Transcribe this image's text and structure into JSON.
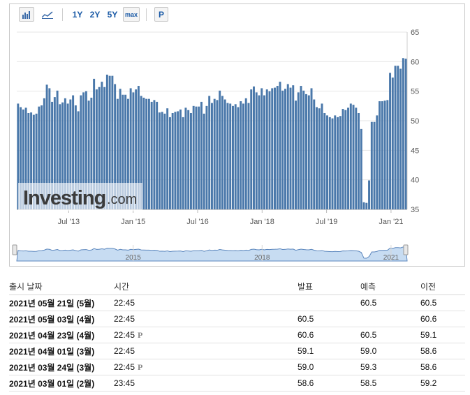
{
  "toolbar": {
    "bar_icon": "bar-chart-icon",
    "line_icon": "line-chart-icon",
    "range_1y": "1Y",
    "range_2y": "2Y",
    "range_5y": "5Y",
    "range_max": "max",
    "p_button": "P"
  },
  "watermark": {
    "brand": "Investing",
    "suffix": ".com"
  },
  "chart_data": {
    "type": "bar",
    "title": "",
    "xlabel": "",
    "ylabel": "",
    "ylim": [
      35,
      65
    ],
    "yticks": [
      35,
      40,
      45,
      50,
      55,
      60,
      65
    ],
    "x_tick_labels": [
      "Jul '13",
      "Jan '15",
      "Jul '16",
      "Jan '18",
      "Jul '19",
      "Jan '21"
    ],
    "x_tick_dates": [
      "2013-07",
      "2015-01",
      "2016-07",
      "2018-01",
      "2019-07",
      "2021-01"
    ],
    "x_range": [
      "2012-05",
      "2021-05"
    ],
    "grid": "horizontal",
    "color": "#4a78aa",
    "values": [
      52.9,
      52.3,
      51.9,
      52.2,
      51.3,
      51.4,
      51.0,
      51.2,
      52.4,
      52.6,
      53.8,
      56.1,
      55.5,
      53.2,
      54.0,
      55.1,
      52.8,
      53.1,
      53.8,
      52.9,
      53.6,
      54.3,
      52.6,
      51.6,
      54.3,
      54.8,
      55.0,
      53.4,
      53.9,
      57.1,
      55.3,
      55.7,
      56.6,
      55.7,
      57.8,
      57.6,
      57.6,
      56.2,
      53.7,
      55.4,
      54.4,
      54.4,
      53.7,
      55.5,
      54.8,
      55.3,
      55.9,
      54.2,
      53.9,
      53.7,
      53.7,
      53.2,
      53.5,
      53.2,
      51.4,
      51.5,
      51.2,
      52.1,
      50.6,
      51.3,
      51.5,
      51.6,
      51.9,
      50.6,
      52.2,
      51.8,
      51.3,
      52.5,
      52.4,
      52.4,
      53.2,
      51.2,
      52.5,
      54.2,
      53.0,
      53.7,
      53.5,
      55.1,
      54.2,
      53.6,
      53.0,
      52.9,
      52.5,
      52.8,
      52.3,
      53.3,
      52.9,
      53.8,
      53.0,
      55.3,
      55.8,
      54.8,
      54.3,
      55.5,
      54.3,
      55.3,
      55.0,
      55.5,
      55.6,
      55.9,
      56.6,
      55.1,
      55.4,
      56.2,
      55.6,
      56.0,
      53.4,
      54.8,
      55.9,
      55.1,
      54.5,
      54.3,
      55.5,
      53.6,
      52.3,
      52.1,
      52.9,
      51.3,
      50.9,
      50.6,
      50.4,
      50.9,
      50.6,
      50.8,
      52.0,
      51.8,
      52.2,
      52.9,
      52.7,
      52.2,
      51.3,
      48.6,
      36.2,
      36.1,
      39.9,
      49.8,
      49.8,
      50.9,
      53.3,
      53.3,
      53.4,
      53.5,
      58.1,
      57.3,
      59.3,
      59.3,
      58.8,
      60.6,
      60.5
    ],
    "navigator": {
      "x_tick_labels": [
        "2015",
        "2018",
        "2021"
      ],
      "x_tick_dates": [
        "2015-01",
        "2018-01",
        "2021-01"
      ]
    }
  },
  "table": {
    "headers": {
      "date": "출시 날짜",
      "time": "시간",
      "actual": "발표",
      "forecast": "예측",
      "previous": "이전"
    },
    "rows": [
      {
        "date": "2021년 05월 21일 (5월)",
        "time": "22:45",
        "prelim": "",
        "actual": "",
        "actual_color": "",
        "forecast": "60.5",
        "previous": "60.5",
        "previous_color": "red"
      },
      {
        "date": "2021년 05월 03일 (4월)",
        "time": "22:45",
        "prelim": "",
        "actual": "60.5",
        "actual_color": "",
        "forecast": "",
        "previous": "60.6",
        "previous_color": ""
      },
      {
        "date": "2021년 04월 23일 (4월)",
        "time": "22:45",
        "prelim": "P",
        "actual": "60.6",
        "actual_color": "red",
        "forecast": "60.5",
        "previous": "59.1",
        "previous_color": ""
      },
      {
        "date": "2021년 04월 01일 (3월)",
        "time": "22:45",
        "prelim": "",
        "actual": "59.1",
        "actual_color": "red",
        "forecast": "59.0",
        "previous": "58.6",
        "previous_color": ""
      },
      {
        "date": "2021년 03월 24일 (3월)",
        "time": "22:45",
        "prelim": "P",
        "actual": "59.0",
        "actual_color": "blue",
        "forecast": "59.3",
        "previous": "58.6",
        "previous_color": ""
      },
      {
        "date": "2021년 03월 01일 (2월)",
        "time": "23:45",
        "prelim": "",
        "actual": "58.6",
        "actual_color": "red",
        "forecast": "58.5",
        "previous": "59.2",
        "previous_color": ""
      }
    ]
  }
}
